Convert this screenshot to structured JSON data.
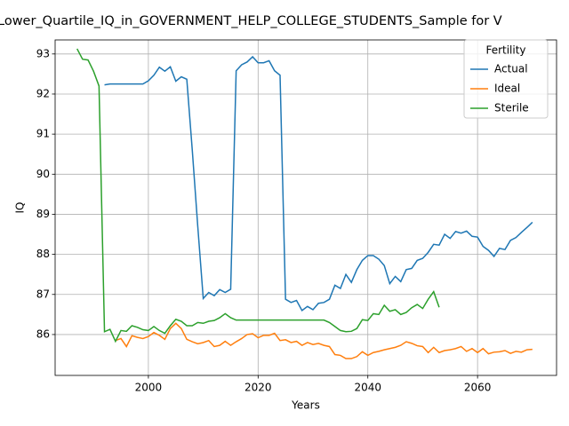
{
  "chart_data": {
    "type": "line",
    "title": "Lower_Quartile_IQ_in_GOVERNMENT_HELP_COLLEGE_STUDENTS_Sample for V",
    "x_label": "Years",
    "y_label": "IQ",
    "legend_title": "Fertility",
    "legend": "upper right",
    "grid": true,
    "xlim": [
      1983,
      2074.4
    ],
    "ylim": [
      84.98,
      93.35
    ],
    "xticks": [
      2000,
      2020,
      2040,
      2060
    ],
    "yticks": [
      86,
      87,
      88,
      89,
      90,
      91,
      92,
      93
    ],
    "x": [
      1987,
      1988,
      1989,
      1990,
      1991,
      1992,
      1993,
      1994,
      1995,
      1996,
      1997,
      1998,
      1999,
      2000,
      2001,
      2002,
      2003,
      2004,
      2005,
      2006,
      2007,
      2008,
      2009,
      2010,
      2011,
      2012,
      2013,
      2014,
      2015,
      2016,
      2017,
      2018,
      2019,
      2020,
      2021,
      2022,
      2023,
      2024,
      2025,
      2026,
      2027,
      2028,
      2029,
      2030,
      2031,
      2032,
      2033,
      2034,
      2035,
      2036,
      2037,
      2038,
      2039,
      2040,
      2041,
      2042,
      2043,
      2044,
      2045,
      2046,
      2047,
      2048,
      2049,
      2050,
      2051,
      2052,
      2053,
      2054,
      2055,
      2056,
      2057,
      2058,
      2059,
      2060,
      2061,
      2062,
      2063,
      2064,
      2065,
      2066,
      2067,
      2068,
      2069,
      2070
    ],
    "series": [
      {
        "name": "Actual",
        "color": "#1f77b4",
        "values": [
          null,
          null,
          null,
          null,
          null,
          92.23,
          92.25,
          92.25,
          92.25,
          92.25,
          92.25,
          92.25,
          92.25,
          92.33,
          92.47,
          92.67,
          92.57,
          92.68,
          92.32,
          92.43,
          92.37,
          90.6,
          88.7,
          86.9,
          87.05,
          86.97,
          87.12,
          87.05,
          87.13,
          92.58,
          92.73,
          92.8,
          92.93,
          92.78,
          92.78,
          92.83,
          92.58,
          92.47,
          86.88,
          86.8,
          86.85,
          86.6,
          86.7,
          86.62,
          86.78,
          86.8,
          86.88,
          87.23,
          87.15,
          87.5,
          87.3,
          87.62,
          87.85,
          87.97,
          87.97,
          87.88,
          87.72,
          87.27,
          87.45,
          87.32,
          87.62,
          87.65,
          87.85,
          87.9,
          88.05,
          88.25,
          88.23,
          88.5,
          88.4,
          88.57,
          88.53,
          88.58,
          88.45,
          88.43,
          88.2,
          88.1,
          87.95,
          88.15,
          88.12,
          88.35,
          88.42,
          88.55,
          88.67,
          88.8
        ]
      },
      {
        "name": "Ideal",
        "color": "#ff7f0e",
        "values": [
          null,
          null,
          null,
          null,
          null,
          null,
          null,
          85.85,
          85.9,
          85.7,
          85.97,
          85.93,
          85.9,
          85.95,
          86.05,
          85.98,
          85.88,
          86.15,
          86.28,
          86.15,
          85.88,
          85.82,
          85.77,
          85.8,
          85.85,
          85.7,
          85.73,
          85.83,
          85.73,
          85.82,
          85.9,
          86.0,
          86.02,
          85.92,
          85.98,
          85.98,
          86.03,
          85.85,
          85.87,
          85.8,
          85.83,
          85.73,
          85.8,
          85.75,
          85.78,
          85.73,
          85.7,
          85.5,
          85.48,
          85.4,
          85.4,
          85.45,
          85.57,
          85.48,
          85.55,
          85.58,
          85.62,
          85.65,
          85.68,
          85.73,
          85.82,
          85.78,
          85.72,
          85.7,
          85.55,
          85.68,
          85.55,
          85.6,
          85.62,
          85.65,
          85.7,
          85.58,
          85.65,
          85.55,
          85.65,
          85.52,
          85.56,
          85.57,
          85.6,
          85.53,
          85.58,
          85.56,
          85.62,
          85.63
        ]
      },
      {
        "name": "Sterile",
        "color": "#2ca02c",
        "values": [
          93.13,
          92.87,
          92.85,
          92.57,
          92.2,
          86.07,
          86.13,
          85.83,
          86.1,
          86.08,
          86.22,
          86.18,
          86.12,
          86.1,
          86.2,
          86.1,
          86.03,
          86.22,
          86.38,
          86.33,
          86.22,
          86.22,
          86.3,
          86.28,
          86.33,
          86.35,
          86.42,
          86.52,
          86.42,
          86.36,
          86.36,
          86.36,
          86.36,
          86.36,
          86.36,
          86.36,
          86.36,
          86.36,
          86.36,
          86.36,
          86.36,
          86.36,
          86.36,
          86.36,
          86.36,
          86.36,
          86.3,
          86.2,
          86.1,
          86.07,
          86.08,
          86.15,
          86.37,
          86.35,
          86.52,
          86.5,
          86.73,
          86.58,
          86.62,
          86.5,
          86.55,
          86.67,
          86.75,
          86.65,
          86.88,
          87.07,
          86.68,
          null,
          null,
          null,
          null,
          null,
          null,
          null,
          null,
          null,
          null,
          null,
          null,
          null,
          null,
          null,
          null,
          null
        ]
      }
    ]
  }
}
